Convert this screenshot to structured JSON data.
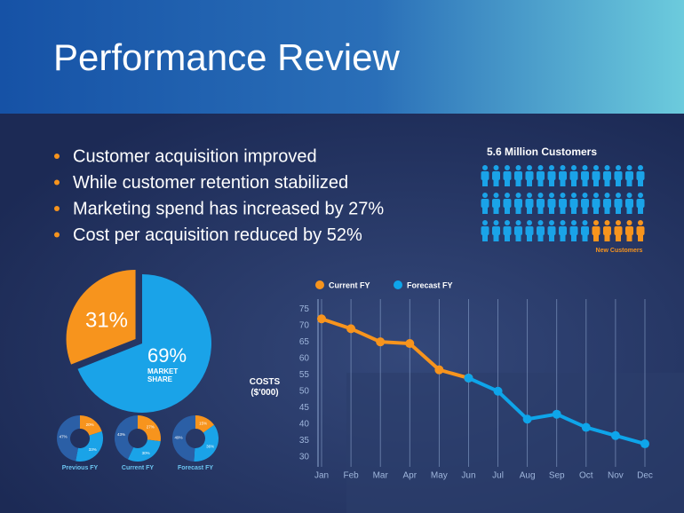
{
  "title": "Performance Review",
  "bullets": [
    "Customer acquisition improved",
    "While customer retention stabilized",
    "Marketing spend has increased by 27%",
    "Cost per acquisition reduced by 52%"
  ],
  "chart_data": [
    {
      "type": "pictogram",
      "title": "5.6 Million Customers",
      "count": 40,
      "highlight_count": 5,
      "highlight_label": "New Customers",
      "color": "#1aa3e8",
      "highlight_color": "#f7941d"
    },
    {
      "type": "pie",
      "values": [
        31,
        69
      ],
      "value_labels": [
        "31%",
        "69%"
      ],
      "colors": [
        "#f7941d",
        "#1aa3e8"
      ],
      "label": "MARKET SHARE"
    },
    {
      "type": "donut",
      "name": "Previous FY",
      "values": [
        20,
        33,
        47
      ],
      "value_labels": [
        "20%",
        "33%",
        "47%"
      ],
      "colors": [
        "#f7941d",
        "#1aa3e8",
        "#2b5fa6"
      ]
    },
    {
      "type": "donut",
      "name": "Current FY",
      "values": [
        27,
        30,
        43
      ],
      "value_labels": [
        "27%",
        "30%",
        "43%"
      ],
      "colors": [
        "#f7941d",
        "#1aa3e8",
        "#2b5fa6"
      ]
    },
    {
      "type": "donut",
      "name": "Forecast FY",
      "values": [
        15,
        36,
        49
      ],
      "value_labels": [
        "15%",
        "36%",
        "49%"
      ],
      "colors": [
        "#f7941d",
        "#1aa3e8",
        "#2b5fa6"
      ]
    },
    {
      "type": "line",
      "ylabel": "COSTS ($'000)",
      "categories": [
        "Jan",
        "Feb",
        "Mar",
        "Apr",
        "May",
        "Jun",
        "Jul",
        "Aug",
        "Sep",
        "Oct",
        "Nov",
        "Dec"
      ],
      "series": [
        {
          "name": "Current FY",
          "color": "#f7941d",
          "values": [
            72,
            69,
            65,
            64.5,
            56.5,
            54,
            null,
            null,
            null,
            null,
            null,
            null
          ]
        },
        {
          "name": "Forecast FY",
          "color": "#0ea5ea",
          "values": [
            null,
            null,
            null,
            null,
            null,
            54,
            50,
            41.5,
            43,
            39,
            36.5,
            34
          ]
        }
      ],
      "ylim": [
        27,
        78
      ],
      "yticks": [
        30,
        35,
        40,
        45,
        50,
        55,
        60,
        65,
        70,
        75
      ],
      "grid": true
    }
  ]
}
